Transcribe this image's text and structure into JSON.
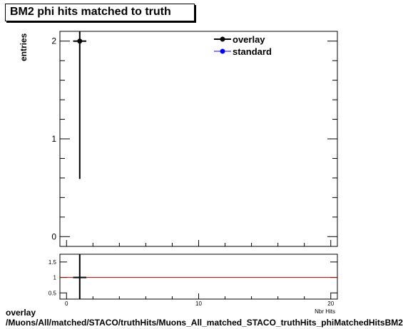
{
  "chart_data": [
    {
      "type": "scatter",
      "title": "BM2 phi hits matched to truth",
      "ylabel": "entries",
      "xlim": [
        -0.5,
        20.5
      ],
      "ylim": [
        -0.1,
        2.1
      ],
      "yticks": [
        0,
        1,
        2
      ],
      "series": [
        {
          "name": "overlay",
          "color": "#000000",
          "x": [
            1
          ],
          "y": [
            2
          ],
          "yerr": [
            1.41
          ]
        },
        {
          "name": "standard",
          "color": "#0000ff",
          "x": [],
          "y": []
        }
      ],
      "legend_position": "top-right"
    },
    {
      "type": "line",
      "ylim": [
        0.3,
        1.75
      ],
      "yticks": [
        0.5,
        1,
        1.5
      ],
      "ytick_labels": [
        "0.5",
        "1",
        "1.5"
      ],
      "xticks": [
        0,
        10,
        20
      ],
      "reference_line": {
        "y": 1,
        "color": "#aa0000"
      },
      "series": [
        {
          "color": "#000000",
          "x": [
            1
          ],
          "y": [
            1
          ]
        }
      ],
      "xlabel": "Nbr Hits"
    }
  ],
  "footer": {
    "line1": "overlay",
    "line2": "/Muons/All/matched/STACO/truthHits/Muons_All_matched_STACO_truthHits_phiMatchedHitsBM2"
  }
}
